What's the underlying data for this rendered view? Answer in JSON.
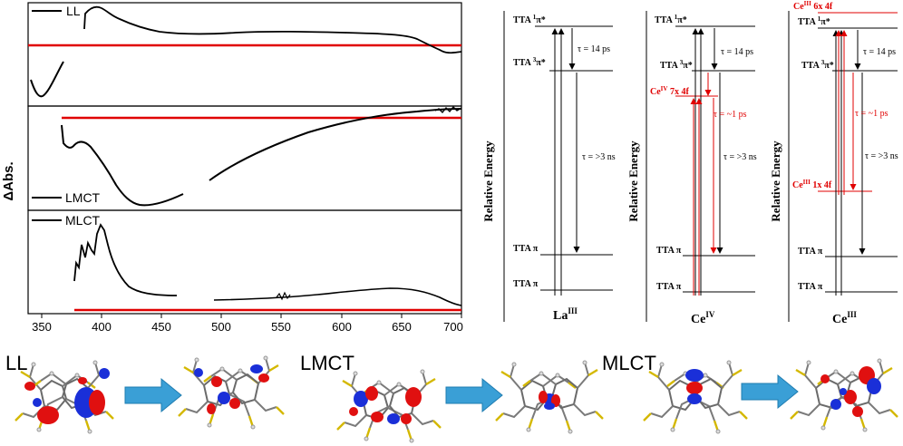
{
  "left_figure": {
    "ylabel": "ΔAbs.",
    "x_ticks": [
      "350",
      "400",
      "450",
      "500",
      "550",
      "600",
      "650",
      "700"
    ],
    "panels": [
      {
        "legend": "LL"
      },
      {
        "legend": "LMCT"
      },
      {
        "legend": "MLCT"
      }
    ]
  },
  "energy_diagrams": {
    "yaxis_label": "Relative Energy",
    "tau_short": "τ = 14 ps",
    "tau_long": "τ = >3 ns",
    "tau_ce": "τ = ~1 ps",
    "level_singlet_prefix": "TTA ",
    "level_singlet_sup": "1",
    "level_singlet_suffix": "π*",
    "level_triplet_prefix": "TTA ",
    "level_triplet_sup": "3",
    "level_triplet_suffix": "π*",
    "level_pi": "TTA π",
    "diagrams": [
      {
        "name_base": "La",
        "name_sup": "III"
      },
      {
        "name_base": "Ce",
        "name_sup": "IV",
        "red_level_base": "Ce",
        "red_level_sup": "IV",
        "red_level_suffix": " 7x 4f"
      },
      {
        "name_base": "Ce",
        "name_sup": "III",
        "red_top_base": "Ce",
        "red_top_sup": "III",
        "red_top_suffix": " 6x 4f",
        "red_level_base": "Ce",
        "red_level_sup": "III",
        "red_level_suffix": " 1x 4f"
      }
    ]
  },
  "orbital_labels": [
    "LL",
    "LMCT",
    "MLCT"
  ],
  "colors": {
    "red": "#e00000",
    "blue_arrow": "#3a9fd6",
    "lobe_red": "#e01010",
    "lobe_blue": "#1a2fd8"
  }
}
